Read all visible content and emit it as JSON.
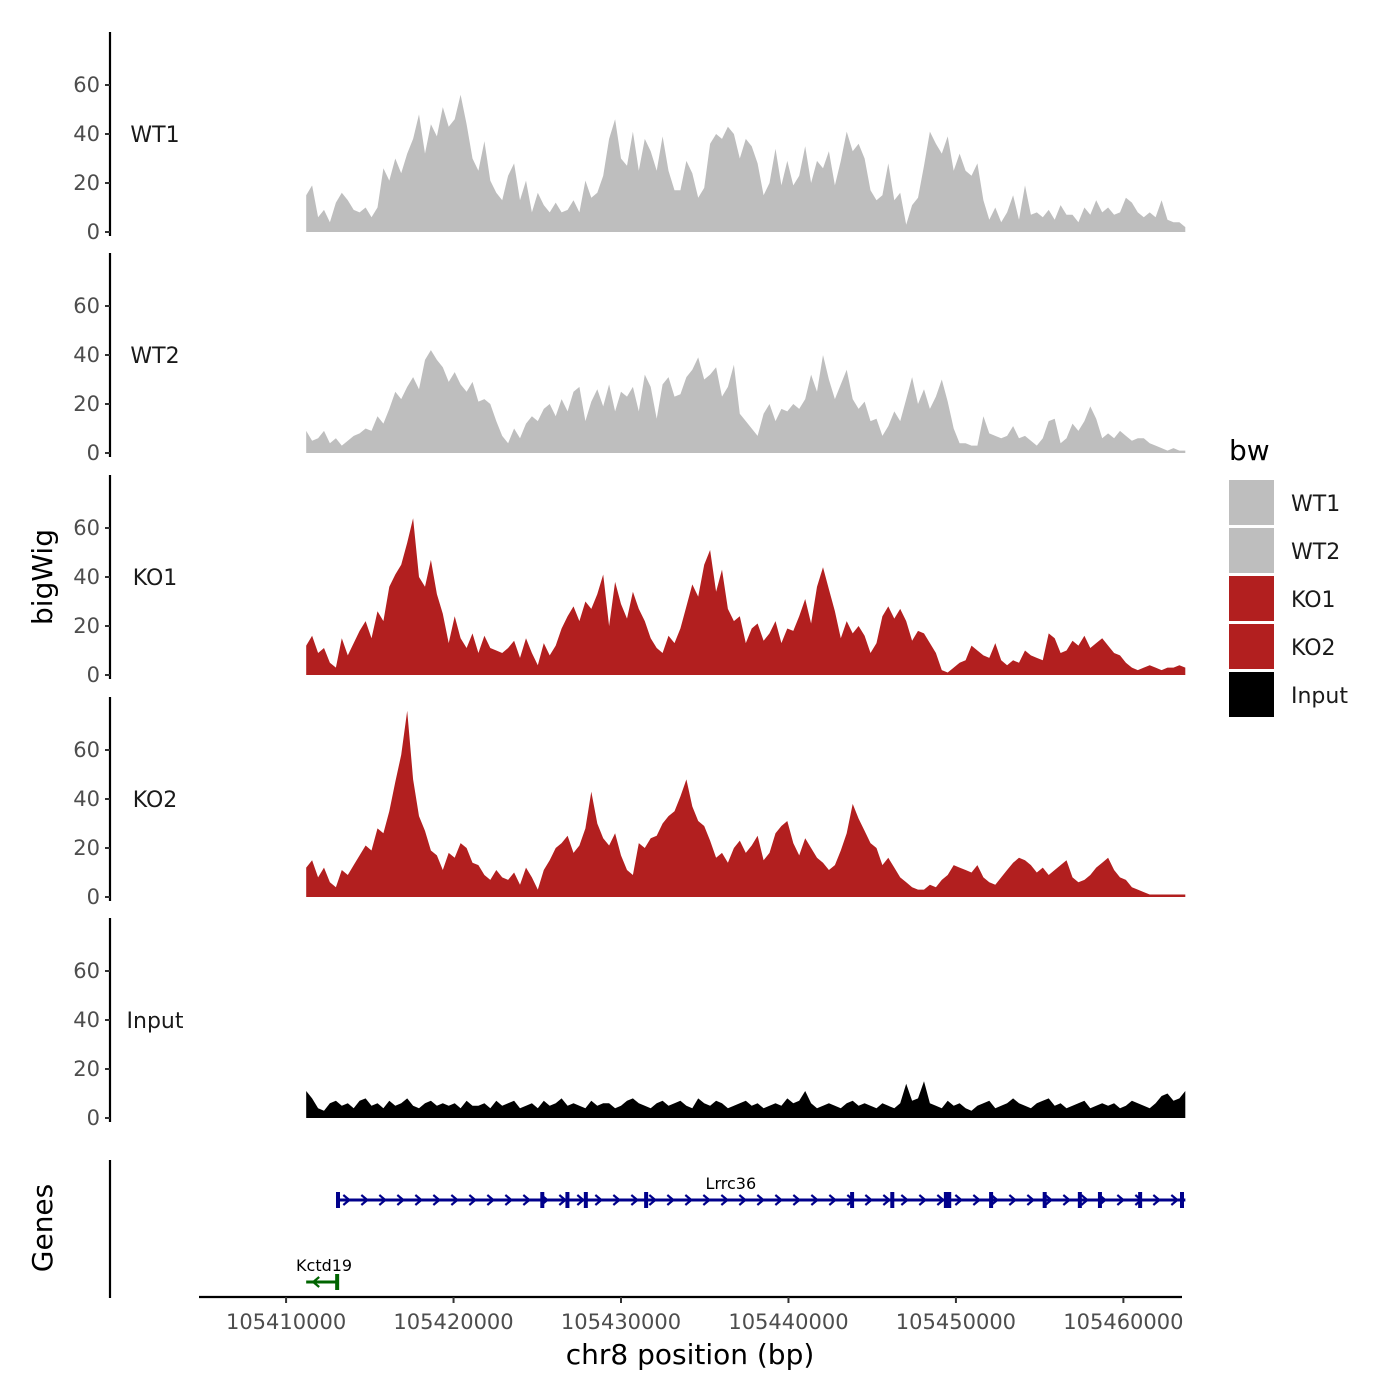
{
  "chart_data": {
    "type": "area",
    "x_axis": {
      "label": "chr8 position (bp)",
      "range": [
        105404800,
        105463500
      ],
      "ticks": [
        105410000,
        105420000,
        105430000,
        105440000,
        105450000,
        105460000
      ],
      "tick_labels": [
        "105410000",
        "105420000",
        "105430000",
        "105440000",
        "105450000",
        "105460000"
      ]
    },
    "y_axis": {
      "label": "bigWig",
      "range": [
        0,
        80
      ],
      "ticks": [
        0,
        20,
        40,
        60
      ],
      "tick_labels": [
        "0",
        "20",
        "40",
        "60"
      ]
    },
    "x_start": 105411200,
    "x_end": 105463700,
    "tracks": [
      {
        "name": "WT1",
        "color": "#bebebe",
        "values": [
          15,
          19,
          6,
          9,
          4,
          12,
          16,
          13,
          9,
          8,
          10,
          6,
          10,
          26,
          21,
          30,
          24,
          32,
          38,
          48,
          32,
          44,
          39,
          51,
          43,
          46,
          56,
          44,
          30,
          25,
          37,
          21,
          16,
          13,
          23,
          28,
          13,
          21,
          8,
          16,
          11,
          8,
          12,
          8,
          9,
          13,
          8,
          21,
          14,
          16,
          23,
          38,
          46,
          30,
          27,
          41,
          25,
          38,
          33,
          25,
          39,
          25,
          17,
          17,
          29,
          24,
          14,
          18,
          36,
          40,
          38,
          43,
          40,
          30,
          38,
          35,
          28,
          15,
          20,
          34,
          19,
          29,
          19,
          23,
          35,
          20,
          29,
          26,
          33,
          19,
          29,
          41,
          33,
          36,
          30,
          17,
          13,
          15,
          28,
          13,
          16,
          3,
          11,
          14,
          27,
          41,
          36,
          32,
          39,
          25,
          32,
          25,
          23,
          28,
          13,
          5,
          10,
          4,
          8,
          15,
          5,
          19,
          7,
          8,
          6,
          9,
          5,
          11,
          7,
          7,
          4,
          10,
          7,
          13,
          8,
          10,
          7,
          8,
          14,
          12,
          8,
          6,
          8,
          6,
          13,
          5,
          4,
          4,
          2
        ]
      },
      {
        "name": "WT2",
        "color": "#bebebe",
        "values": [
          9,
          5,
          6,
          9,
          4,
          6,
          3,
          5,
          7,
          8,
          10,
          9,
          15,
          12,
          18,
          25,
          22,
          27,
          31,
          26,
          38,
          42,
          38,
          35,
          29,
          33,
          28,
          25,
          29,
          21,
          22,
          20,
          13,
          7,
          4,
          10,
          6,
          12,
          15,
          13,
          18,
          20,
          15,
          22,
          17,
          25,
          27,
          13,
          21,
          26,
          19,
          28,
          17,
          25,
          23,
          27,
          17,
          32,
          27,
          14,
          28,
          31,
          23,
          24,
          31,
          34,
          39,
          30,
          32,
          35,
          23,
          27,
          36,
          16,
          13,
          10,
          7,
          16,
          20,
          13,
          18,
          17,
          20,
          18,
          22,
          32,
          25,
          40,
          30,
          22,
          28,
          34,
          22,
          18,
          21,
          13,
          14,
          7,
          11,
          17,
          13,
          22,
          31,
          20,
          26,
          18,
          23,
          30,
          21,
          10,
          4,
          4,
          3,
          3,
          15,
          8,
          7,
          6,
          7,
          11,
          6,
          7,
          5,
          3,
          6,
          13,
          14,
          4,
          6,
          12,
          9,
          13,
          19,
          14,
          6,
          8,
          6,
          9,
          7,
          5,
          6,
          6,
          4,
          3,
          2,
          1,
          2,
          1,
          1
        ]
      },
      {
        "name": "KO1",
        "color": "#b21f1f",
        "values": [
          12,
          16,
          9,
          11,
          5,
          3,
          15,
          8,
          13,
          18,
          22,
          15,
          26,
          22,
          36,
          41,
          45,
          54,
          64,
          40,
          36,
          47,
          33,
          25,
          13,
          24,
          15,
          11,
          17,
          9,
          16,
          11,
          10,
          9,
          11,
          14,
          7,
          15,
          9,
          4,
          13,
          8,
          12,
          19,
          24,
          28,
          22,
          30,
          27,
          33,
          41,
          20,
          38,
          29,
          23,
          34,
          27,
          22,
          15,
          11,
          9,
          16,
          13,
          19,
          28,
          37,
          32,
          45,
          51,
          34,
          43,
          27,
          22,
          24,
          13,
          19,
          21,
          14,
          17,
          22,
          13,
          19,
          18,
          24,
          31,
          21,
          36,
          44,
          35,
          26,
          15,
          22,
          17,
          20,
          16,
          9,
          13,
          24,
          28,
          23,
          27,
          22,
          14,
          18,
          17,
          13,
          9,
          2,
          1,
          3,
          5,
          6,
          12,
          10,
          8,
          7,
          13,
          6,
          4,
          6,
          5,
          10,
          8,
          7,
          6,
          17,
          15,
          9,
          10,
          14,
          12,
          16,
          11,
          13,
          15,
          12,
          9,
          8,
          5,
          3,
          2,
          3,
          4,
          3,
          2,
          3,
          3,
          4,
          3
        ]
      },
      {
        "name": "KO2",
        "color": "#b21f1f",
        "values": [
          12,
          15,
          8,
          12,
          6,
          4,
          11,
          9,
          13,
          17,
          21,
          19,
          28,
          26,
          35,
          47,
          58,
          76,
          48,
          33,
          27,
          19,
          17,
          11,
          18,
          16,
          22,
          20,
          14,
          13,
          9,
          7,
          11,
          8,
          7,
          10,
          5,
          12,
          8,
          3,
          11,
          15,
          20,
          22,
          25,
          18,
          21,
          28,
          43,
          30,
          24,
          21,
          26,
          17,
          11,
          9,
          22,
          20,
          24,
          25,
          30,
          33,
          35,
          41,
          48,
          37,
          31,
          29,
          23,
          16,
          18,
          14,
          20,
          23,
          18,
          21,
          25,
          15,
          18,
          26,
          29,
          31,
          22,
          17,
          24,
          20,
          16,
          14,
          11,
          13,
          19,
          26,
          38,
          32,
          27,
          22,
          20,
          13,
          16,
          12,
          8,
          6,
          4,
          3,
          3,
          5,
          4,
          7,
          9,
          13,
          12,
          11,
          10,
          13,
          8,
          6,
          5,
          8,
          11,
          14,
          16,
          15,
          13,
          10,
          12,
          9,
          11,
          13,
          15,
          8,
          6,
          7,
          9,
          12,
          14,
          16,
          11,
          8,
          7,
          4,
          3,
          2,
          1,
          1,
          1,
          1,
          1,
          1,
          1
        ]
      },
      {
        "name": "Input",
        "color": "#000000",
        "values": [
          11,
          8,
          4,
          3,
          6,
          7,
          5,
          6,
          4,
          7,
          8,
          5,
          6,
          4,
          7,
          5,
          6,
          8,
          5,
          4,
          6,
          7,
          5,
          6,
          5,
          6,
          4,
          7,
          5,
          5,
          6,
          4,
          7,
          5,
          6,
          7,
          4,
          5,
          6,
          4,
          7,
          5,
          6,
          8,
          5,
          6,
          5,
          4,
          7,
          5,
          6,
          6,
          4,
          5,
          7,
          8,
          6,
          5,
          4,
          6,
          7,
          5,
          6,
          7,
          5,
          4,
          8,
          6,
          5,
          7,
          6,
          4,
          5,
          6,
          7,
          5,
          6,
          4,
          5,
          6,
          5,
          8,
          6,
          7,
          11,
          6,
          4,
          5,
          6,
          5,
          4,
          6,
          7,
          5,
          6,
          5,
          4,
          6,
          5,
          4,
          6,
          14,
          7,
          8,
          15,
          6,
          5,
          4,
          7,
          5,
          6,
          4,
          3,
          5,
          6,
          7,
          4,
          5,
          6,
          8,
          6,
          5,
          4,
          6,
          7,
          8,
          5,
          6,
          4,
          5,
          6,
          7,
          4,
          5,
          6,
          5,
          6,
          4,
          5,
          7,
          6,
          5,
          4,
          6,
          9,
          10,
          7,
          8,
          11
        ]
      }
    ],
    "genes_track": {
      "label": "Genes",
      "genes": [
        {
          "name": "Lrrc36",
          "strand": "+",
          "start": 105413000,
          "end": 105463700,
          "color": "#00008b",
          "exons": [
            105413100,
            105425300,
            105426800,
            105427900,
            105431500,
            105443800,
            105446200,
            105449400,
            105449600,
            105452100,
            105455300,
            105457400,
            105458600,
            105461000,
            105463500
          ]
        },
        {
          "name": "Kctd19",
          "strand": "-",
          "start": 105411200,
          "end": 105413100,
          "color": "#006400",
          "exons": [
            105413050
          ]
        }
      ]
    },
    "legend": {
      "title": "bw",
      "entries": [
        {
          "label": "WT1",
          "color": "#bebebe"
        },
        {
          "label": "WT2",
          "color": "#bebebe"
        },
        {
          "label": "KO1",
          "color": "#b21f1f"
        },
        {
          "label": "KO2",
          "color": "#b21f1f"
        },
        {
          "label": "Input",
          "color": "#000000"
        }
      ]
    }
  }
}
